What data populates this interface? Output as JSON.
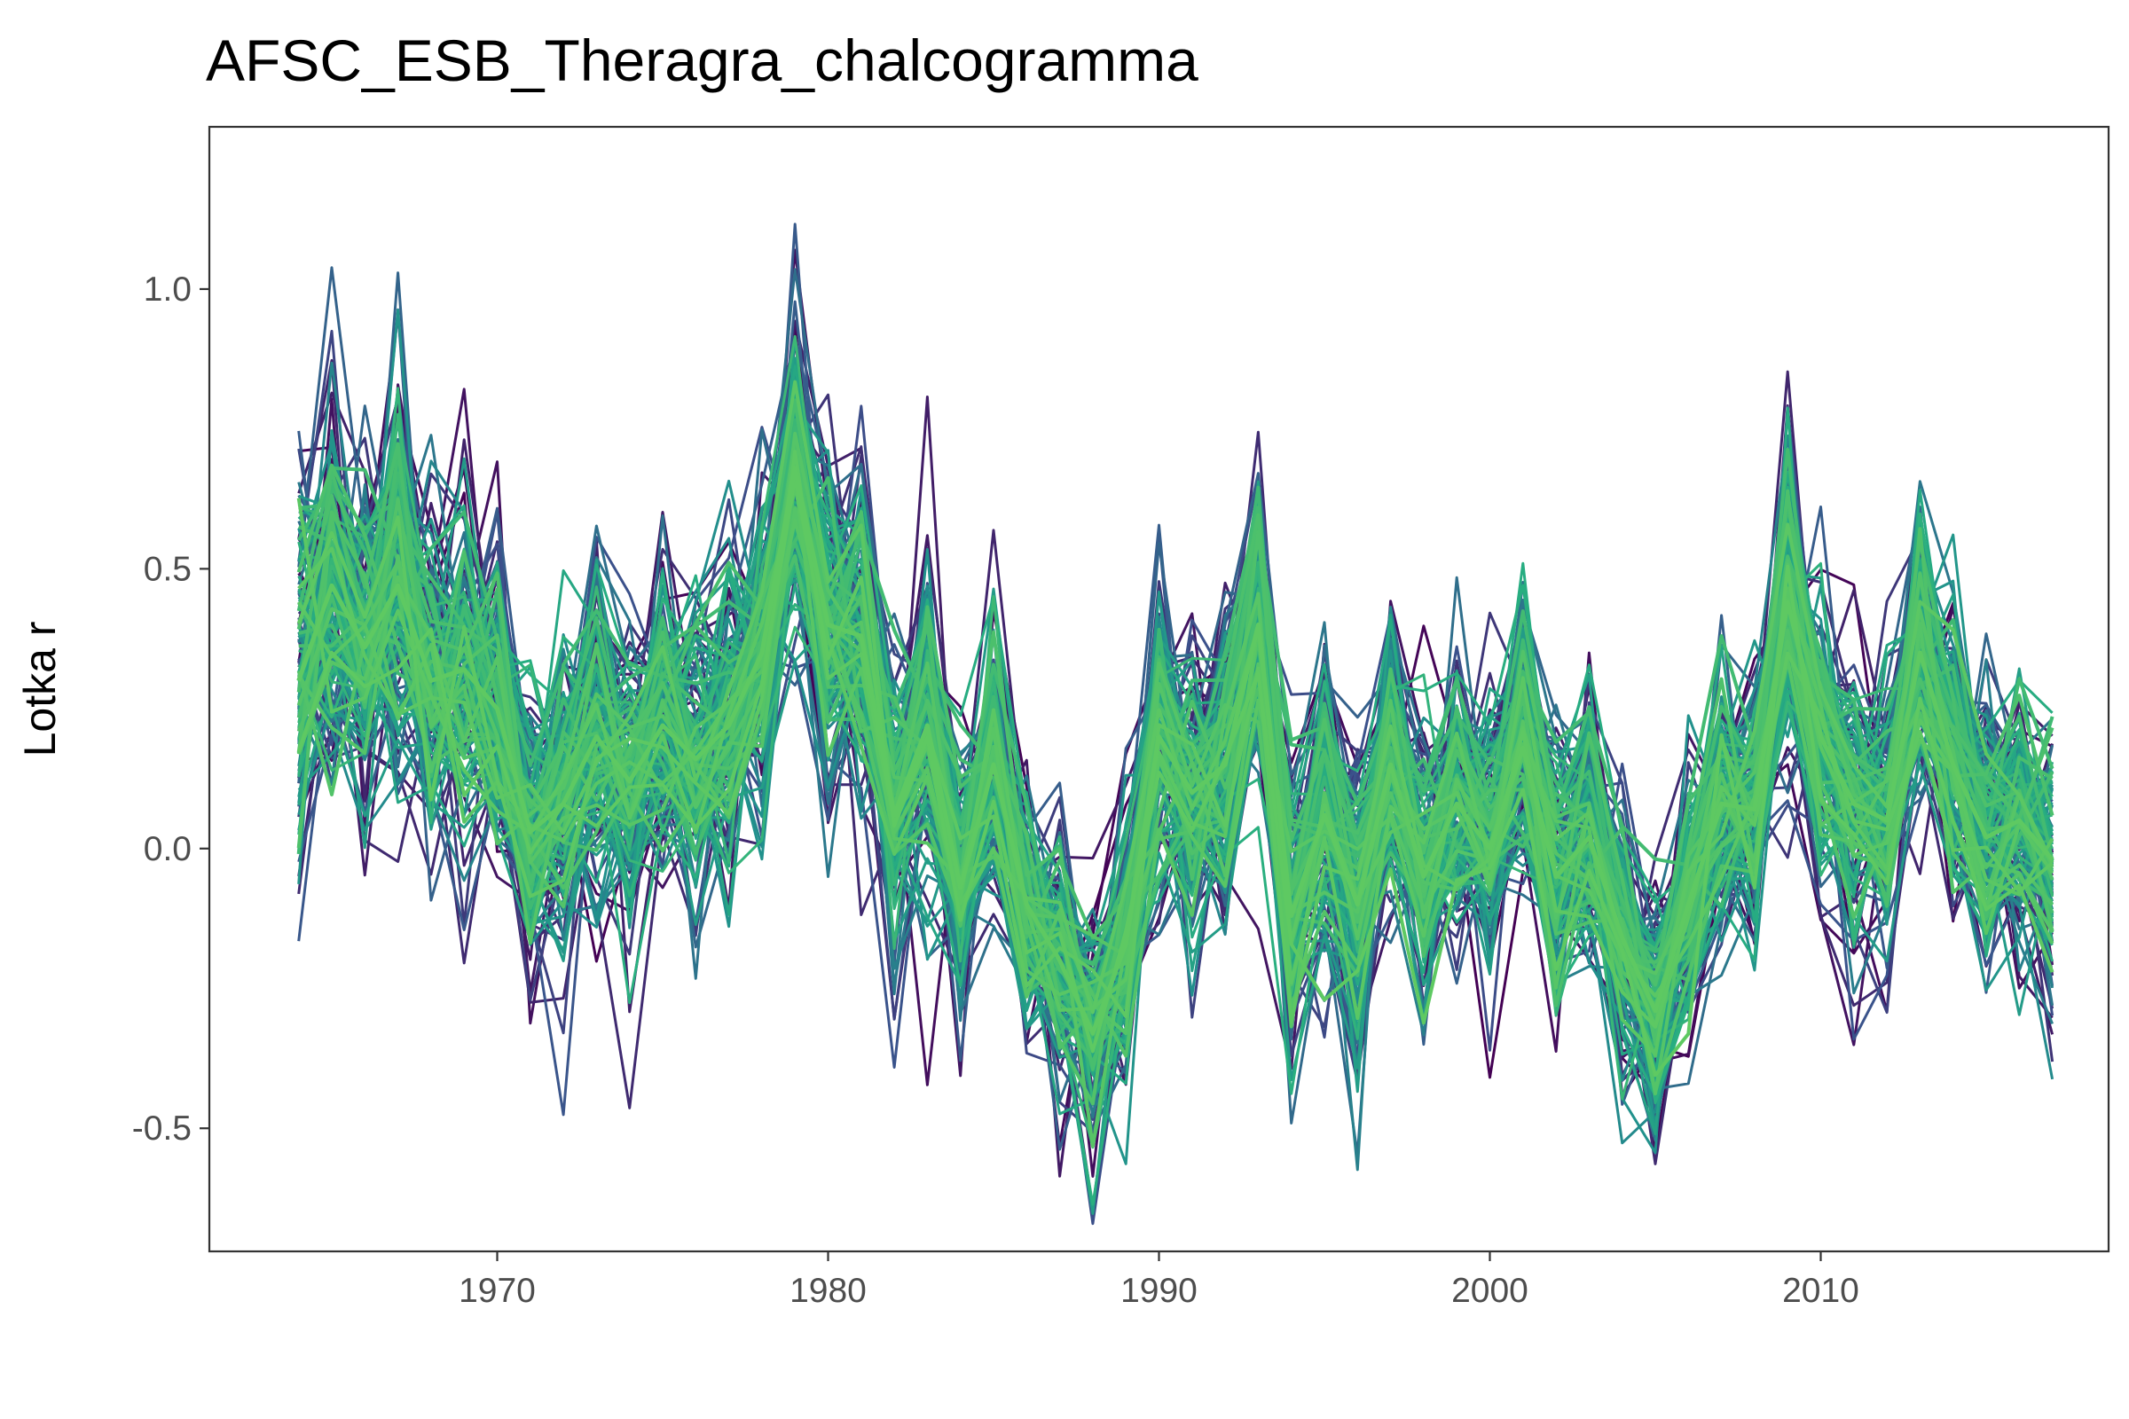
{
  "chart_data": {
    "type": "line",
    "title": "AFSC_ESB_Theragra_chalcogramma",
    "xlabel": "",
    "ylabel": "Lotka r",
    "xlim": [
      1961.3,
      2018.7
    ],
    "ylim": [
      -0.72,
      1.29
    ],
    "x_ticks": [
      1970,
      1980,
      1990,
      2000,
      2010
    ],
    "y_ticks": [
      -0.5,
      0.0,
      0.5,
      1.0
    ],
    "y_tick_labels": [
      "-0.5",
      "0.0",
      "0.5",
      "1.0"
    ],
    "grid": false,
    "legend": "none",
    "palette": [
      "#440154",
      "#3b528b",
      "#21908c",
      "#27ad81",
      "#5ec962"
    ],
    "x": [
      1964,
      1965,
      1966,
      1967,
      1968,
      1969,
      1970,
      1971,
      1972,
      1973,
      1974,
      1975,
      1976,
      1977,
      1978,
      1979,
      1980,
      1981,
      1982,
      1983,
      1984,
      1985,
      1986,
      1987,
      1988,
      1989,
      1990,
      1991,
      1992,
      1993,
      1994,
      1995,
      1996,
      1997,
      1998,
      1999,
      2000,
      2001,
      2002,
      2003,
      2004,
      2005,
      2006,
      2007,
      2008,
      2009,
      2010,
      2011,
      2012,
      2013,
      2014,
      2015,
      2016,
      2017
    ],
    "central_series": [
      0.3,
      0.47,
      0.36,
      0.47,
      0.3,
      0.32,
      0.25,
      0.03,
      0.08,
      0.2,
      0.12,
      0.22,
      0.16,
      0.22,
      0.35,
      0.68,
      0.4,
      0.38,
      0.06,
      0.22,
      -0.07,
      0.15,
      -0.1,
      -0.2,
      -0.33,
      -0.17,
      0.2,
      0.1,
      0.15,
      0.4,
      -0.12,
      0.06,
      -0.1,
      0.15,
      -0.05,
      0.08,
      0.0,
      0.18,
      -0.05,
      0.02,
      -0.16,
      -0.29,
      -0.1,
      0.08,
      0.07,
      0.44,
      0.2,
      0.08,
      0.05,
      0.35,
      0.15,
      0.02,
      0.05,
      -0.02
    ],
    "ensemble_spread": [
      0.18,
      0.17,
      0.16,
      0.18,
      0.15,
      0.15,
      0.14,
      0.13,
      0.13,
      0.15,
      0.14,
      0.14,
      0.14,
      0.14,
      0.15,
      0.15,
      0.15,
      0.15,
      0.13,
      0.15,
      0.12,
      0.13,
      0.1,
      0.12,
      0.1,
      0.12,
      0.13,
      0.13,
      0.12,
      0.12,
      0.12,
      0.13,
      0.13,
      0.12,
      0.12,
      0.12,
      0.12,
      0.13,
      0.12,
      0.12,
      0.12,
      0.11,
      0.11,
      0.12,
      0.12,
      0.14,
      0.12,
      0.12,
      0.12,
      0.13,
      0.12,
      0.12,
      0.11,
      0.12
    ],
    "ensemble_size": 150
  }
}
